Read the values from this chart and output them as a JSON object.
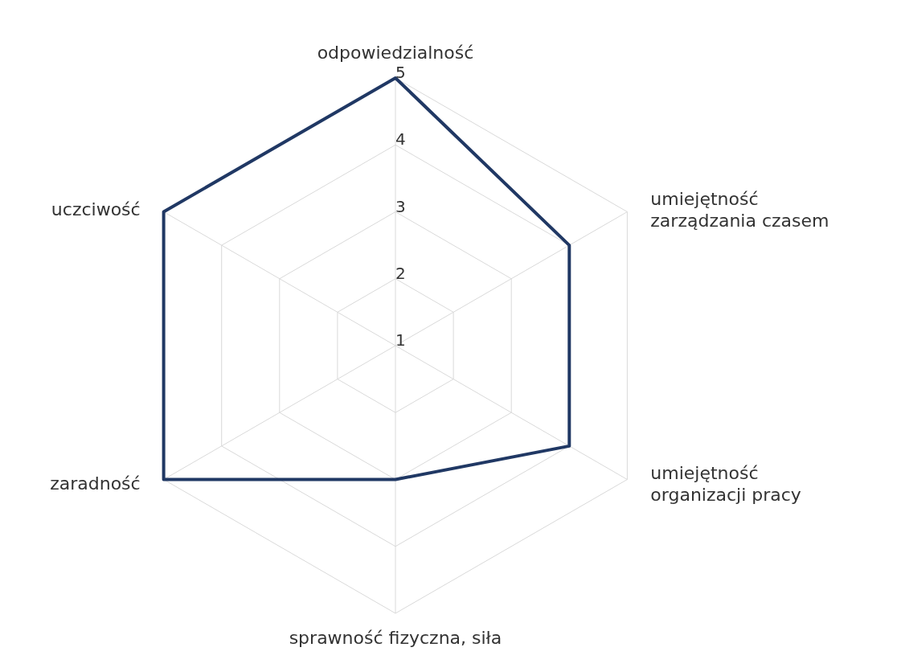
{
  "chart_data": {
    "type": "radar",
    "categories": [
      "odpowiedzialność",
      "umiejętność zarządzania czasem",
      "umiejętność organizacji pracy",
      "sprawność fizyczna, siła",
      "zaradność",
      "uczciwość"
    ],
    "series": [
      {
        "color": "#203864",
        "values": [
          5,
          4,
          4,
          3,
          5,
          5
        ]
      }
    ],
    "ylim": [
      1,
      5
    ],
    "yticks": [
      1,
      2,
      3,
      4,
      5
    ],
    "grid": true
  }
}
